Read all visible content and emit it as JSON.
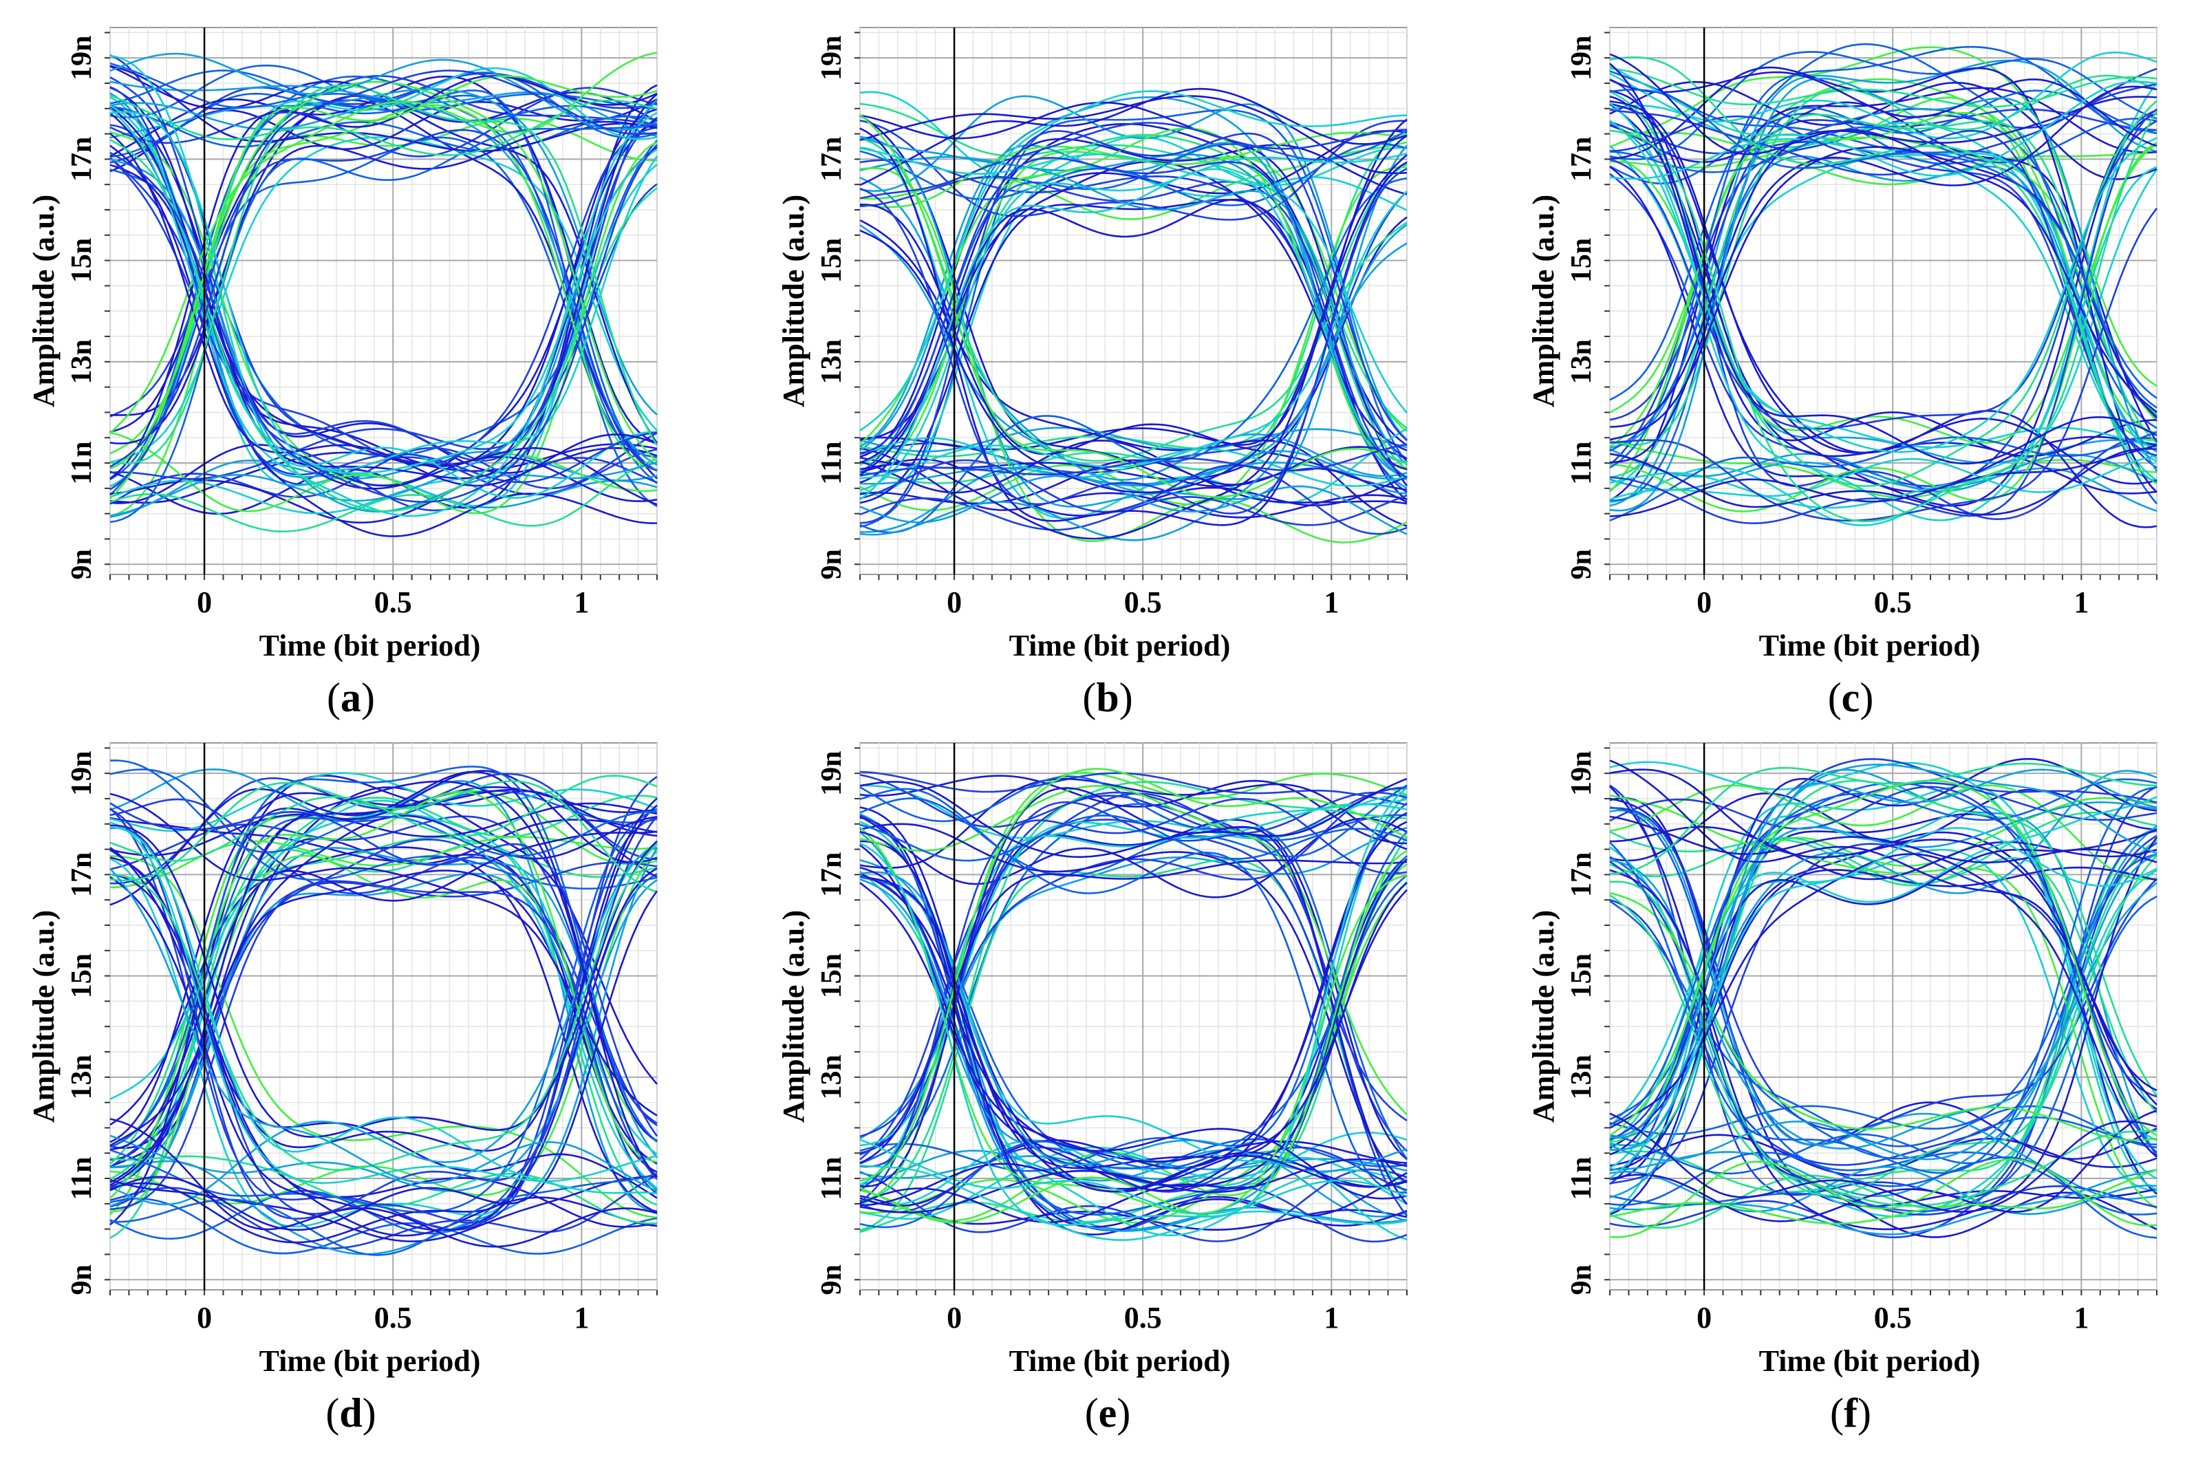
{
  "chart_data": {
    "type": "line",
    "description_note": "Eye diagrams: amplitude traces vs time in bit periods",
    "common": {
      "xlabel": "Time (bit period)",
      "ylabel": "Amplitude (a.u.)",
      "xlim": [
        -0.25,
        1.2
      ],
      "ylim": [
        8.8,
        19.6
      ],
      "xticks": [
        0,
        0.5,
        1
      ],
      "xtick_labels": [
        "0",
        "0.5",
        "1"
      ],
      "yticks": [
        9,
        11,
        13,
        15,
        17,
        19
      ],
      "ytick_labels": [
        "9n",
        "11n",
        "13n",
        "15n",
        "17n",
        "19n"
      ],
      "grid": true,
      "trace_colors": [
        "#1a1ad0",
        "#1f3fe0",
        "#1060e8",
        "#10a0e0",
        "#18d0d0",
        "#20e090",
        "#40f040"
      ]
    },
    "panels": [
      {
        "label": "a",
        "high_level": 17.9,
        "low_level": 10.7,
        "high_spread": 0.9,
        "low_spread": 0.75,
        "crossing_amplitude": 14.2,
        "eye_opening": [
          12.0,
          16.5
        ],
        "seed": 11
      },
      {
        "label": "b",
        "high_level": 17.0,
        "low_level": 10.6,
        "high_spread": 1.1,
        "low_spread": 0.9,
        "crossing_amplitude": 13.8,
        "eye_opening": [
          11.8,
          15.8
        ],
        "seed": 23
      },
      {
        "label": "c",
        "high_level": 17.9,
        "low_level": 10.9,
        "high_spread": 1.2,
        "low_spread": 1.0,
        "crossing_amplitude": 14.6,
        "eye_opening": [
          12.2,
          16.8
        ],
        "seed": 37
      },
      {
        "label": "d",
        "high_level": 17.9,
        "low_level": 10.8,
        "high_spread": 1.2,
        "low_spread": 1.1,
        "crossing_amplitude": 14.5,
        "eye_opening": [
          12.1,
          16.9
        ],
        "seed": 41
      },
      {
        "label": "e",
        "high_level": 18.0,
        "low_level": 10.9,
        "high_spread": 1.0,
        "low_spread": 0.9,
        "crossing_amplitude": 14.4,
        "eye_opening": [
          12.2,
          16.9
        ],
        "seed": 53
      },
      {
        "label": "f",
        "high_level": 18.0,
        "low_level": 11.2,
        "high_spread": 1.1,
        "low_spread": 1.1,
        "crossing_amplitude": 14.6,
        "eye_opening": [
          12.4,
          16.8
        ],
        "seed": 67
      }
    ]
  },
  "captions": [
    "(a)",
    "(b)",
    "(c)",
    "(d)",
    "(e)",
    "(f)"
  ],
  "caption_letters": [
    "a",
    "b",
    "c",
    "d",
    "e",
    "f"
  ]
}
